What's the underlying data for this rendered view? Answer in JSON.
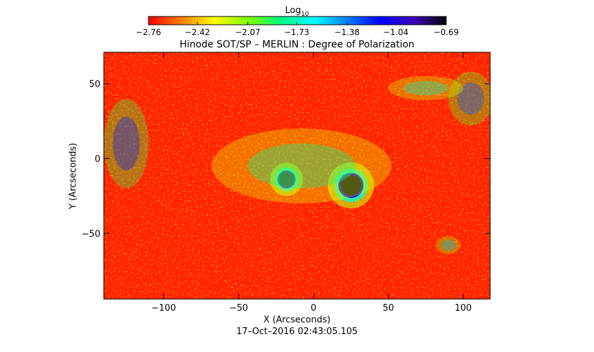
{
  "chart_data": {
    "type": "heatmap",
    "title": "Hinode SOT/SP – MERLIN : Degree of Polarization",
    "xlabel": "X (Arcseconds)",
    "ylabel": "Y (Arcseconds)",
    "timestamp": "17–Oct–2016 02:43:05.105",
    "xlim": [
      -140,
      118
    ],
    "ylim": [
      -94,
      71
    ],
    "x_ticks": [
      {
        "value": -100,
        "label": "−100"
      },
      {
        "value": -50,
        "label": "−50"
      },
      {
        "value": 0,
        "label": "0"
      },
      {
        "value": 50,
        "label": "50"
      },
      {
        "value": 100,
        "label": "100"
      }
    ],
    "y_ticks": [
      {
        "value": 50,
        "label": "50"
      },
      {
        "value": 0,
        "label": "0"
      },
      {
        "value": -50,
        "label": "−50"
      }
    ],
    "colorbar": {
      "label_base": "Log",
      "label_sub": "10",
      "range": [
        -2.76,
        -0.69
      ],
      "ticks": [
        {
          "value": -2.76,
          "label": "−2.76"
        },
        {
          "value": -2.42,
          "label": "−2.42"
        },
        {
          "value": -2.07,
          "label": "−2.07"
        },
        {
          "value": -1.73,
          "label": "−1.73"
        },
        {
          "value": -1.38,
          "label": "−1.38"
        },
        {
          "value": -1.04,
          "label": "−1.04"
        },
        {
          "value": -0.69,
          "label": "−0.69"
        }
      ],
      "colors": [
        "#ff0000",
        "#ff8000",
        "#ffff00",
        "#80ff00",
        "#00ff80",
        "#00ffff",
        "#0080ff",
        "#0000ff",
        "#4000c0",
        "#000000"
      ]
    },
    "background_value": -2.7,
    "features": [
      {
        "type": "spot",
        "x": -18,
        "y": -14,
        "rx": 5,
        "ry": 5,
        "value": -0.75
      },
      {
        "type": "spot",
        "x": 25,
        "y": -18,
        "rx": 7,
        "ry": 7,
        "value": -0.72
      },
      {
        "type": "plage",
        "x": -8,
        "y": -5,
        "rx": 60,
        "ry": 25,
        "value": -1.8
      },
      {
        "type": "plage",
        "x": -125,
        "y": 10,
        "rx": 15,
        "ry": 30,
        "value": -1.2
      },
      {
        "type": "plage",
        "x": 105,
        "y": 40,
        "rx": 15,
        "ry": 18,
        "value": -1.3
      },
      {
        "type": "plage",
        "x": 75,
        "y": 47,
        "rx": 25,
        "ry": 8,
        "value": -1.7
      },
      {
        "type": "plage",
        "x": 90,
        "y": -58,
        "rx": 8,
        "ry": 6,
        "value": -1.5
      }
    ]
  }
}
